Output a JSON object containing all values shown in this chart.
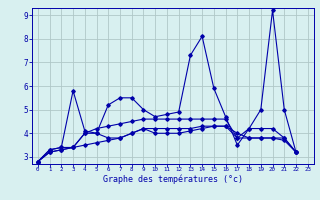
{
  "title": "",
  "xlabel": "Graphe des températures (°c)",
  "bg_color": "#d8f0f0",
  "grid_color": "#b0c8c8",
  "line_color": "#0000aa",
  "xlim": [
    -0.5,
    23.5
  ],
  "ylim": [
    2.7,
    9.3
  ],
  "xticks": [
    0,
    1,
    2,
    3,
    4,
    5,
    6,
    7,
    8,
    9,
    10,
    11,
    12,
    13,
    14,
    15,
    16,
    17,
    18,
    19,
    20,
    21,
    22,
    23
  ],
  "yticks": [
    3,
    4,
    5,
    6,
    7,
    8,
    9
  ],
  "lines": [
    [
      2.8,
      3.3,
      3.4,
      5.8,
      4.1,
      4.0,
      5.2,
      5.5,
      5.5,
      5.0,
      4.7,
      4.8,
      4.9,
      7.3,
      8.1,
      5.9,
      4.7,
      3.5,
      4.2,
      5.0,
      9.2,
      5.0,
      3.2
    ],
    [
      2.8,
      3.3,
      3.4,
      3.4,
      4.0,
      4.2,
      4.3,
      4.4,
      4.5,
      4.6,
      4.6,
      4.6,
      4.6,
      4.6,
      4.6,
      4.6,
      4.6,
      3.8,
      4.2,
      4.2,
      4.2,
      3.8,
      3.2
    ],
    [
      2.8,
      3.2,
      3.3,
      3.4,
      4.0,
      4.0,
      3.8,
      3.8,
      4.0,
      4.2,
      4.0,
      4.0,
      4.0,
      4.1,
      4.2,
      4.3,
      4.3,
      3.8,
      3.8,
      3.8,
      3.8,
      3.8,
      3.2
    ],
    [
      2.8,
      3.2,
      3.3,
      3.4,
      3.5,
      3.6,
      3.7,
      3.8,
      4.0,
      4.2,
      4.2,
      4.2,
      4.2,
      4.2,
      4.3,
      4.3,
      4.3,
      4.0,
      3.8,
      3.8,
      3.8,
      3.7,
      3.2
    ]
  ]
}
